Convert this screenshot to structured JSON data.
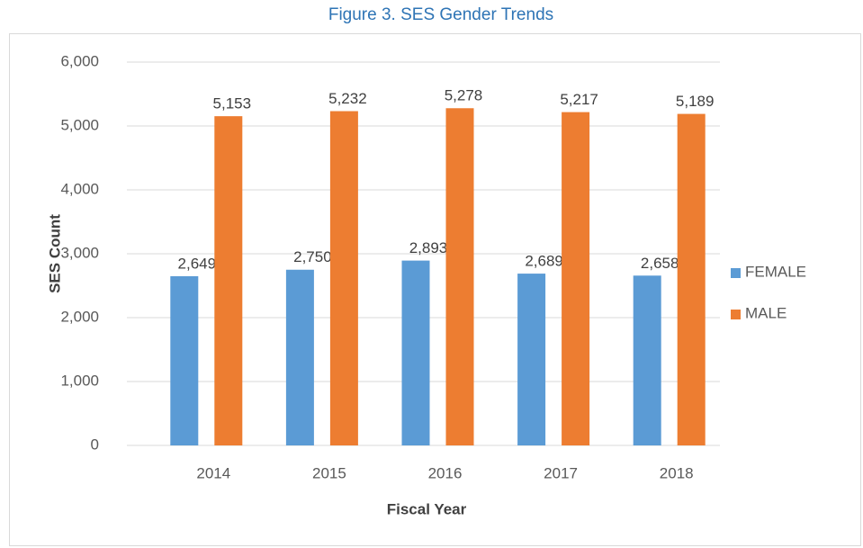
{
  "chart_data": {
    "type": "bar",
    "title": "Figure 3. SES Gender Trends",
    "x_label": "Fiscal Year",
    "y_label": "SES Count",
    "categories": [
      "2014",
      "2015",
      "2016",
      "2017",
      "2018"
    ],
    "series": [
      {
        "name": "FEMALE",
        "color": "#5b9bd5",
        "values": [
          2649,
          2750,
          2893,
          2689,
          2658
        ],
        "value_labels": [
          "2,649",
          "2,750",
          "2,893",
          "2,689",
          "2,658"
        ]
      },
      {
        "name": "MALE",
        "color": "#ed7d31",
        "values": [
          5153,
          5232,
          5278,
          5217,
          5189
        ],
        "value_labels": [
          "5,153",
          "5,232",
          "5,278",
          "5,217",
          "5,189"
        ]
      }
    ],
    "ylim": [
      0,
      6000
    ],
    "yticks": [
      0,
      {
        "value": 1000,
        "label": "1,000"
      },
      {
        "value": 2000,
        "label": "2,000"
      },
      {
        "value": 3000,
        "label": "3,000"
      },
      {
        "value": 4000,
        "label": "4,000"
      },
      {
        "value": 5000,
        "label": "5,000"
      },
      {
        "value": 6000,
        "label": "6,000"
      }
    ],
    "grid": true,
    "legend": "right"
  }
}
